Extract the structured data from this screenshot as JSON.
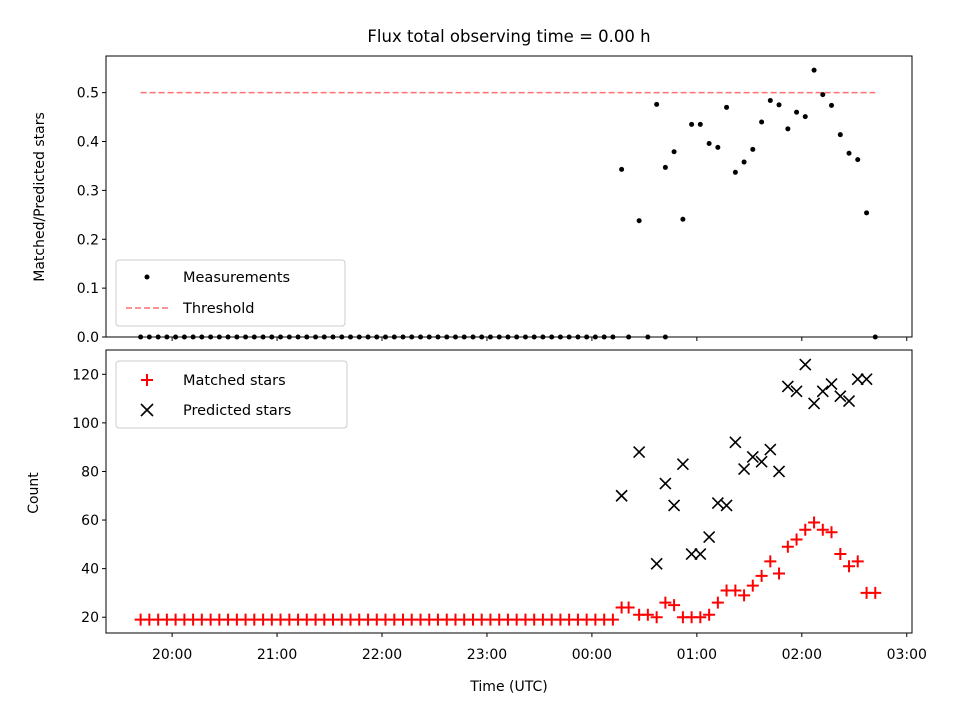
{
  "title": "Flux total observing time = 0.00 h",
  "chart_data": [
    {
      "type": "scatter",
      "ylabel": "Matched/Predicted stars",
      "ylim": [
        0,
        0.575
      ],
      "yticks": [
        "0.0",
        "0.1",
        "0.2",
        "0.3",
        "0.4",
        "0.5"
      ],
      "legend_placement": "lower-left",
      "series": [
        {
          "name": "Measurements",
          "marker": "dot",
          "color": "#000000",
          "points": [
            [
              19.7,
              0
            ],
            [
              19.783,
              0
            ],
            [
              19.867,
              0
            ],
            [
              19.95,
              0
            ],
            [
              20.033,
              0
            ],
            [
              20.117,
              0
            ],
            [
              20.2,
              0
            ],
            [
              20.283,
              0
            ],
            [
              20.367,
              0
            ],
            [
              20.45,
              0
            ],
            [
              20.533,
              0
            ],
            [
              20.617,
              0
            ],
            [
              20.7,
              0
            ],
            [
              20.783,
              0
            ],
            [
              20.867,
              0
            ],
            [
              20.95,
              0
            ],
            [
              21.033,
              0
            ],
            [
              21.117,
              0
            ],
            [
              21.2,
              0
            ],
            [
              21.283,
              0
            ],
            [
              21.367,
              0
            ],
            [
              21.45,
              0
            ],
            [
              21.533,
              0
            ],
            [
              21.617,
              0
            ],
            [
              21.7,
              0
            ],
            [
              21.783,
              0
            ],
            [
              21.867,
              0
            ],
            [
              21.95,
              0
            ],
            [
              22.033,
              0
            ],
            [
              22.117,
              0
            ],
            [
              22.2,
              0
            ],
            [
              22.283,
              0
            ],
            [
              22.367,
              0
            ],
            [
              22.45,
              0
            ],
            [
              22.533,
              0
            ],
            [
              22.617,
              0
            ],
            [
              22.7,
              0
            ],
            [
              22.783,
              0
            ],
            [
              22.867,
              0
            ],
            [
              22.95,
              0
            ],
            [
              23.033,
              0
            ],
            [
              23.117,
              0
            ],
            [
              23.2,
              0
            ],
            [
              23.283,
              0
            ],
            [
              23.367,
              0
            ],
            [
              23.45,
              0
            ],
            [
              23.533,
              0
            ],
            [
              23.617,
              0
            ],
            [
              23.7,
              0
            ],
            [
              23.783,
              0
            ],
            [
              23.867,
              0
            ],
            [
              23.95,
              0
            ],
            [
              24.033,
              0
            ],
            [
              24.117,
              0
            ],
            [
              24.2,
              0
            ],
            [
              24.35,
              0
            ],
            [
              24.533,
              0
            ],
            [
              24.7,
              0
            ],
            [
              24.283,
              0.343
            ],
            [
              24.45,
              0.238
            ],
            [
              24.617,
              0.476
            ],
            [
              24.7,
              0.347
            ],
            [
              24.783,
              0.379
            ],
            [
              24.867,
              0.241
            ],
            [
              24.95,
              0.435
            ],
            [
              25.033,
              0.435
            ],
            [
              25.117,
              0.396
            ],
            [
              25.2,
              0.388
            ],
            [
              25.283,
              0.47
            ],
            [
              25.367,
              0.337
            ],
            [
              25.45,
              0.358
            ],
            [
              25.533,
              0.384
            ],
            [
              25.617,
              0.44
            ],
            [
              25.7,
              0.484
            ],
            [
              25.783,
              0.475
            ],
            [
              25.867,
              0.426
            ],
            [
              25.95,
              0.46
            ],
            [
              26.033,
              0.451
            ],
            [
              26.117,
              0.546
            ],
            [
              26.2,
              0.496
            ],
            [
              26.283,
              0.474
            ],
            [
              26.367,
              0.414
            ],
            [
              26.45,
              0.376
            ],
            [
              26.533,
              0.363
            ],
            [
              26.617,
              0.254
            ],
            [
              26.7,
              0
            ]
          ]
        },
        {
          "name": "Threshold",
          "marker": "dashed-line",
          "color": "#ff7070",
          "points": [
            [
              19.7,
              0.5
            ],
            [
              26.7,
              0.5
            ]
          ]
        }
      ]
    },
    {
      "type": "scatter",
      "ylabel": "Count",
      "xlabel": "Time (UTC)",
      "xlim": [
        19.37,
        27.05
      ],
      "ylim": [
        13.5,
        130
      ],
      "yticks": [
        "20",
        "40",
        "60",
        "80",
        "100",
        "120"
      ],
      "xticks": [
        "20:00",
        "21:00",
        "22:00",
        "23:00",
        "00:00",
        "01:00",
        "02:00",
        "03:00"
      ],
      "legend_placement": "upper-left",
      "series": [
        {
          "name": "Matched stars",
          "marker": "plus",
          "color": "#ff0000",
          "points": [
            [
              19.7,
              19
            ],
            [
              19.783,
              19
            ],
            [
              19.867,
              19
            ],
            [
              19.95,
              19
            ],
            [
              20.033,
              19
            ],
            [
              20.117,
              19
            ],
            [
              20.2,
              19
            ],
            [
              20.283,
              19
            ],
            [
              20.367,
              19
            ],
            [
              20.45,
              19
            ],
            [
              20.533,
              19
            ],
            [
              20.617,
              19
            ],
            [
              20.7,
              19
            ],
            [
              20.783,
              19
            ],
            [
              20.867,
              19
            ],
            [
              20.95,
              19
            ],
            [
              21.033,
              19
            ],
            [
              21.117,
              19
            ],
            [
              21.2,
              19
            ],
            [
              21.283,
              19
            ],
            [
              21.367,
              19
            ],
            [
              21.45,
              19
            ],
            [
              21.533,
              19
            ],
            [
              21.617,
              19
            ],
            [
              21.7,
              19
            ],
            [
              21.783,
              19
            ],
            [
              21.867,
              19
            ],
            [
              21.95,
              19
            ],
            [
              22.033,
              19
            ],
            [
              22.117,
              19
            ],
            [
              22.2,
              19
            ],
            [
              22.283,
              19
            ],
            [
              22.367,
              19
            ],
            [
              22.45,
              19
            ],
            [
              22.533,
              19
            ],
            [
              22.617,
              19
            ],
            [
              22.7,
              19
            ],
            [
              22.783,
              19
            ],
            [
              22.867,
              19
            ],
            [
              22.95,
              19
            ],
            [
              23.033,
              19
            ],
            [
              23.117,
              19
            ],
            [
              23.2,
              19
            ],
            [
              23.283,
              19
            ],
            [
              23.367,
              19
            ],
            [
              23.45,
              19
            ],
            [
              23.533,
              19
            ],
            [
              23.617,
              19
            ],
            [
              23.7,
              19
            ],
            [
              23.783,
              19
            ],
            [
              23.867,
              19
            ],
            [
              23.95,
              19
            ],
            [
              24.033,
              19
            ],
            [
              24.117,
              19
            ],
            [
              24.2,
              19
            ],
            [
              24.283,
              24
            ],
            [
              24.35,
              24
            ],
            [
              24.45,
              21
            ],
            [
              24.533,
              21
            ],
            [
              24.617,
              20
            ],
            [
              24.7,
              26
            ],
            [
              24.783,
              25
            ],
            [
              24.867,
              20
            ],
            [
              24.95,
              20
            ],
            [
              25.033,
              20
            ],
            [
              25.117,
              21
            ],
            [
              25.2,
              26
            ],
            [
              25.283,
              31
            ],
            [
              25.367,
              31
            ],
            [
              25.45,
              29
            ],
            [
              25.533,
              33
            ],
            [
              25.617,
              37
            ],
            [
              25.7,
              43
            ],
            [
              25.783,
              38
            ],
            [
              25.867,
              49
            ],
            [
              25.95,
              52
            ],
            [
              26.033,
              56
            ],
            [
              26.117,
              59
            ],
            [
              26.2,
              56
            ],
            [
              26.283,
              55
            ],
            [
              26.367,
              46
            ],
            [
              26.45,
              41
            ],
            [
              26.533,
              43
            ],
            [
              26.617,
              30
            ],
            [
              26.7,
              30
            ]
          ]
        },
        {
          "name": "Predicted stars",
          "marker": "x",
          "color": "#000000",
          "points": [
            [
              24.283,
              70
            ],
            [
              24.45,
              88
            ],
            [
              24.617,
              42
            ],
            [
              24.7,
              75
            ],
            [
              24.783,
              66
            ],
            [
              24.867,
              83
            ],
            [
              24.95,
              46
            ],
            [
              25.033,
              46
            ],
            [
              25.117,
              53
            ],
            [
              25.2,
              67
            ],
            [
              25.283,
              66
            ],
            [
              25.367,
              92
            ],
            [
              25.45,
              81
            ],
            [
              25.533,
              86
            ],
            [
              25.617,
              84
            ],
            [
              25.7,
              89
            ],
            [
              25.783,
              80
            ],
            [
              25.867,
              115
            ],
            [
              25.95,
              113
            ],
            [
              26.033,
              124
            ],
            [
              26.117,
              108
            ],
            [
              26.2,
              113
            ],
            [
              26.283,
              116
            ],
            [
              26.367,
              111
            ],
            [
              26.45,
              109
            ],
            [
              26.533,
              118
            ],
            [
              26.617,
              118
            ]
          ]
        }
      ]
    }
  ]
}
